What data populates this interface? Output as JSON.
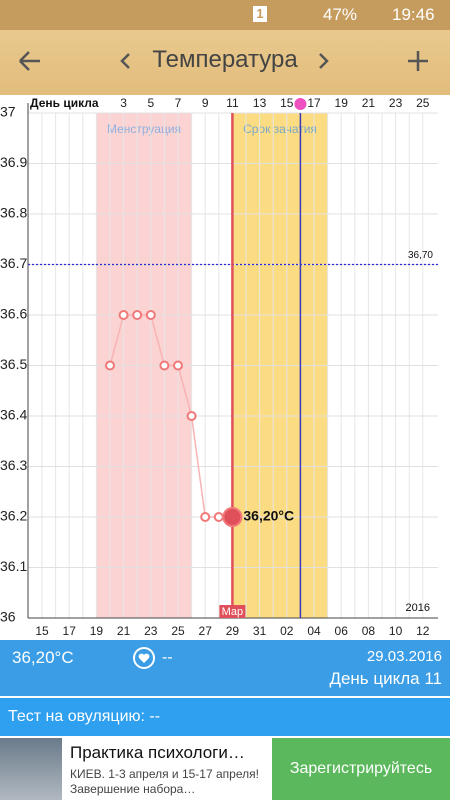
{
  "status_bar": {
    "sim": "1",
    "battery": "47%",
    "time": "19:46"
  },
  "header": {
    "title": "Температура"
  },
  "chart_data": {
    "type": "line",
    "cycle_axis_title": "День цикла",
    "categories": [
      "15",
      null,
      "17",
      null,
      "19",
      null,
      "21",
      null,
      "23",
      null,
      "25",
      null,
      "27",
      null,
      "29",
      null,
      "31",
      null,
      "02",
      null,
      "04",
      null,
      "06",
      null,
      "08",
      null,
      "10",
      null,
      "12"
    ],
    "cycle_days": [
      null,
      null,
      null,
      null,
      null,
      null,
      "3",
      null,
      "5",
      null,
      "7",
      null,
      "9",
      null,
      "11",
      null,
      "13",
      null,
      "15",
      null,
      "17",
      null,
      "19",
      null,
      "21",
      null,
      "23",
      null,
      "25"
    ],
    "series": [
      {
        "color": "#f07878",
        "values": [
          null,
          null,
          null,
          null,
          null,
          36.5,
          36.6,
          36.6,
          36.6,
          36.5,
          36.5,
          36.4,
          36.2,
          36.2,
          36.2,
          null,
          null,
          null,
          null,
          null,
          null,
          null,
          null,
          null,
          null,
          null,
          null,
          null,
          null
        ],
        "value_labels": [
          null,
          null,
          null,
          null,
          null,
          null,
          null,
          null,
          null,
          null,
          null,
          null,
          null,
          null,
          "36,20°C",
          null,
          null,
          null,
          null,
          null,
          null,
          null,
          null,
          null,
          null,
          null,
          null,
          null,
          null
        ]
      }
    ],
    "ylim": [
      36,
      37
    ],
    "yticks": [
      36,
      36.1,
      36.2,
      36.3,
      36.4,
      36.5,
      36.6,
      36.7,
      36.8,
      36.9,
      37
    ],
    "grid": true,
    "reference_line": {
      "value": 36.7,
      "label": "36,70",
      "color": "#2b2bd0"
    },
    "bands": [
      {
        "label": "Менструация",
        "start": 4,
        "end": 11,
        "color": "#fbd3d3",
        "label_color": "#8fb0e0"
      },
      {
        "label": "Срок зачатия",
        "start": 14,
        "end": 21,
        "color": "#fbdc82",
        "label_color": "#7aa8c8"
      }
    ],
    "today": {
      "index": 14,
      "label": "Мар",
      "color": "#e0505a"
    },
    "ovulation": {
      "index": 19,
      "color": "#3838b8"
    },
    "year": "2016"
  },
  "summary": {
    "temperature": "36,20°C",
    "heart_value": "--",
    "date": "29.03.2016",
    "cycle_day": "День цикла 11"
  },
  "ovulation_test": {
    "label": "Тест на овуляцию: --"
  },
  "ad": {
    "title": "Практика психологи…",
    "text": "КИЕВ. 1-3 апреля и 15-17 апреля! Завершение набора…",
    "button": "Зарегистрируйтесь"
  }
}
